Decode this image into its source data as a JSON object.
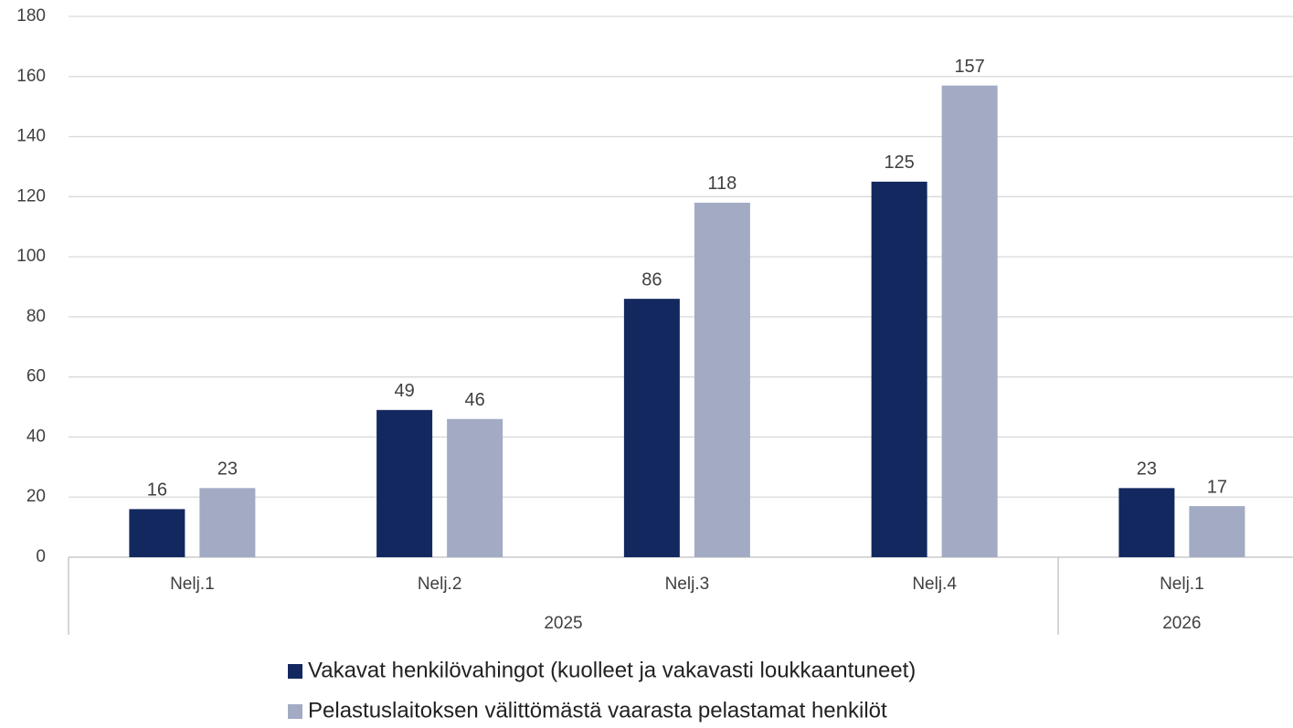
{
  "chart_data": {
    "type": "bar",
    "category_groups": [
      {
        "name": "2025",
        "categories": [
          "Nelj.1",
          "Nelj.2",
          "Nelj.3",
          "Nelj.4"
        ]
      },
      {
        "name": "2026",
        "categories": [
          "Nelj.1"
        ]
      }
    ],
    "series": [
      {
        "name": "Vakavat henkilövahingot (kuolleet ja vakavasti loukkaantuneet)",
        "color": "#13285e",
        "values": [
          16,
          49,
          86,
          125,
          23
        ]
      },
      {
        "name": "Pelastuslaitoksen välittömästä vaarasta pelastamat henkilöt",
        "color": "#a2abc3",
        "values": [
          23,
          46,
          118,
          157,
          17
        ]
      }
    ],
    "ylim": [
      0,
      180
    ],
    "yticks": [
      0,
      20,
      40,
      60,
      80,
      100,
      120,
      140,
      160,
      180
    ],
    "grid": true,
    "legend": "bottom"
  }
}
